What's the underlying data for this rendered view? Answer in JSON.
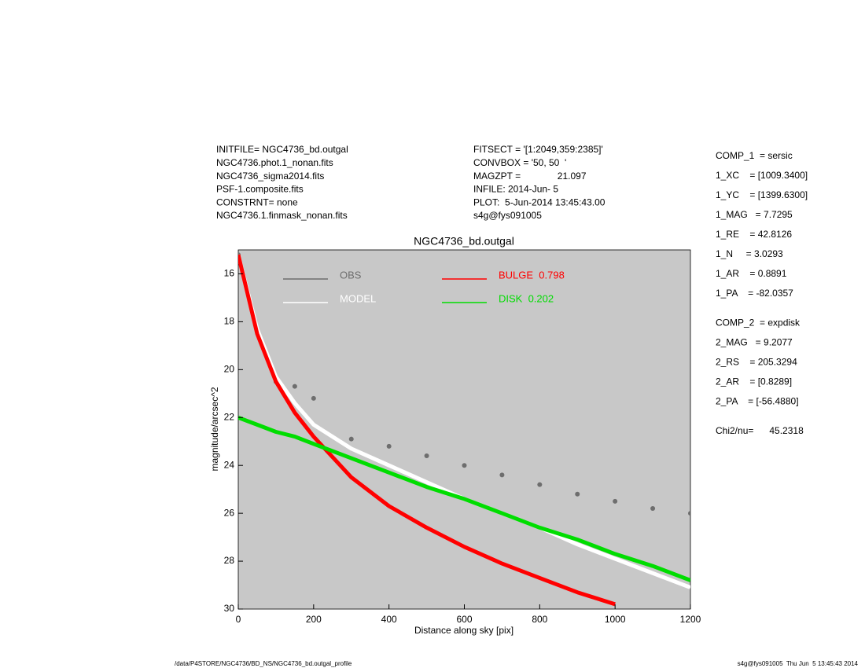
{
  "header": {
    "left": [
      "INITFILE= NGC4736_bd.outgal",
      "NGC4736.phot.1_nonan.fits",
      "NGC4736_sigma2014.fits",
      "PSF-1.composite.fits",
      "CONSTRNT= none",
      "NGC4736.1.finmask_nonan.fits"
    ],
    "middle": [
      "FITSECT = '[1:2049,359:2385]'",
      "CONVBOX = '50, 50  '",
      "MAGZPT =              21.097",
      "INFILE: 2014-Jun- 5",
      "PLOT:  5-Jun-2014 13:45:43.00",
      "s4g@fys091005"
    ]
  },
  "parameters": [
    "COMP_1  = sersic",
    "1_XC    = [1009.3400]",
    "1_YC    = [1399.6300]",
    "1_MAG   = 7.7295",
    "1_RE    = 42.8126",
    "1_N     = 3.0293",
    "1_AR    = 0.8891",
    "1_PA    = -82.0357",
    "COMP_2  = expdisk",
    "2_MAG   = 9.2077",
    "2_RS    = 205.3294",
    "2_AR    = [0.8289]",
    "2_PA    = [-56.4880]",
    "Chi2/nu=      45.2318"
  ],
  "footer": {
    "left": "/data/P4STORE/NGC4736/BD_NS/NGC4736_bd.outgal_profile",
    "right": "s4g@fys091005  Thu Jun  5 13:45:43 2014"
  },
  "chart_data": {
    "type": "line",
    "title": "NGC4736_bd.outgal",
    "x_label": "Distance along sky [pix]",
    "y_label": "magnitude/arcsec^2",
    "x": [
      0,
      50,
      100,
      150,
      200,
      300,
      400,
      500,
      600,
      700,
      800,
      900,
      1000,
      1100,
      1200
    ],
    "series": [
      {
        "name": "OBS",
        "color": "#6e6e6e",
        "style": "markers",
        "values": [
          15.2,
          18.4,
          20.5,
          20.7,
          21.2,
          22.9,
          23.2,
          23.6,
          24.0,
          24.4,
          24.8,
          25.2,
          25.5,
          25.8,
          26.0
        ]
      },
      {
        "name": "MODEL",
        "color": "#ffffff",
        "style": "line",
        "values": [
          15.2,
          18.3,
          20.3,
          21.4,
          22.3,
          23.3,
          24.0,
          24.7,
          25.4,
          26.0,
          26.6,
          27.3,
          27.9,
          28.5,
          29.1
        ]
      },
      {
        "name": "BULGE  0.798",
        "color": "#ff0000",
        "style": "line",
        "values": [
          15.2,
          18.5,
          20.5,
          21.8,
          22.8,
          24.5,
          25.7,
          26.6,
          27.4,
          28.1,
          28.7,
          29.3,
          29.8,
          null,
          null
        ]
      },
      {
        "name": "DISK  0.202",
        "color": "#00dd00",
        "style": "line",
        "values": [
          22.0,
          22.3,
          22.6,
          22.8,
          23.1,
          23.7,
          24.3,
          24.9,
          25.4,
          26.0,
          26.6,
          27.1,
          27.7,
          28.2,
          28.8
        ]
      }
    ],
    "xlim": [
      0,
      1200
    ],
    "xticks": [
      0,
      200,
      400,
      600,
      800,
      1000,
      1200
    ],
    "ylim": [
      15,
      30
    ],
    "yticks": [
      16,
      18,
      20,
      22,
      24,
      26,
      28,
      30
    ],
    "y_inverted": true,
    "background": "#c8c8c8"
  }
}
